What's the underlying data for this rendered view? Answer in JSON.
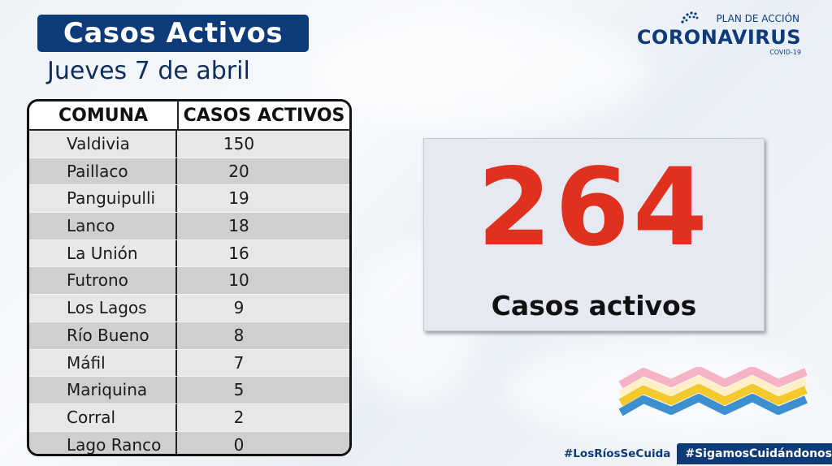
{
  "header": {
    "title": "Casos Activos",
    "date": "Jueves 7 de abril"
  },
  "logo": {
    "top": "PLAN DE ACCIÓN",
    "main": "CORONAVIRUS",
    "sub": "COVID-19"
  },
  "table": {
    "headers": [
      "COMUNA",
      "CASOS ACTIVOS"
    ],
    "rows": [
      {
        "comuna": "Valdivia",
        "casos": "150"
      },
      {
        "comuna": "Paillaco",
        "casos": "20"
      },
      {
        "comuna": "Panguipulli",
        "casos": "19"
      },
      {
        "comuna": "Lanco",
        "casos": "18"
      },
      {
        "comuna": "La Unión",
        "casos": "16"
      },
      {
        "comuna": "Futrono",
        "casos": "10"
      },
      {
        "comuna": "Los Lagos",
        "casos": "9"
      },
      {
        "comuna": "Río Bueno",
        "casos": "8"
      },
      {
        "comuna": "Máfil",
        "casos": "7"
      },
      {
        "comuna": "Mariquina",
        "casos": "5"
      },
      {
        "comuna": "Corral",
        "casos": "2"
      },
      {
        "comuna": "Lago Ranco",
        "casos": "0"
      }
    ]
  },
  "summary": {
    "total": "264",
    "label": "Casos activos"
  },
  "footer": {
    "hashtag1": "#LosRíosSeCuida",
    "hashtag2": "#SigamosCuidándonos"
  },
  "colors": {
    "brand_blue": "#0d3b7a",
    "accent_red": "#e0301e"
  }
}
